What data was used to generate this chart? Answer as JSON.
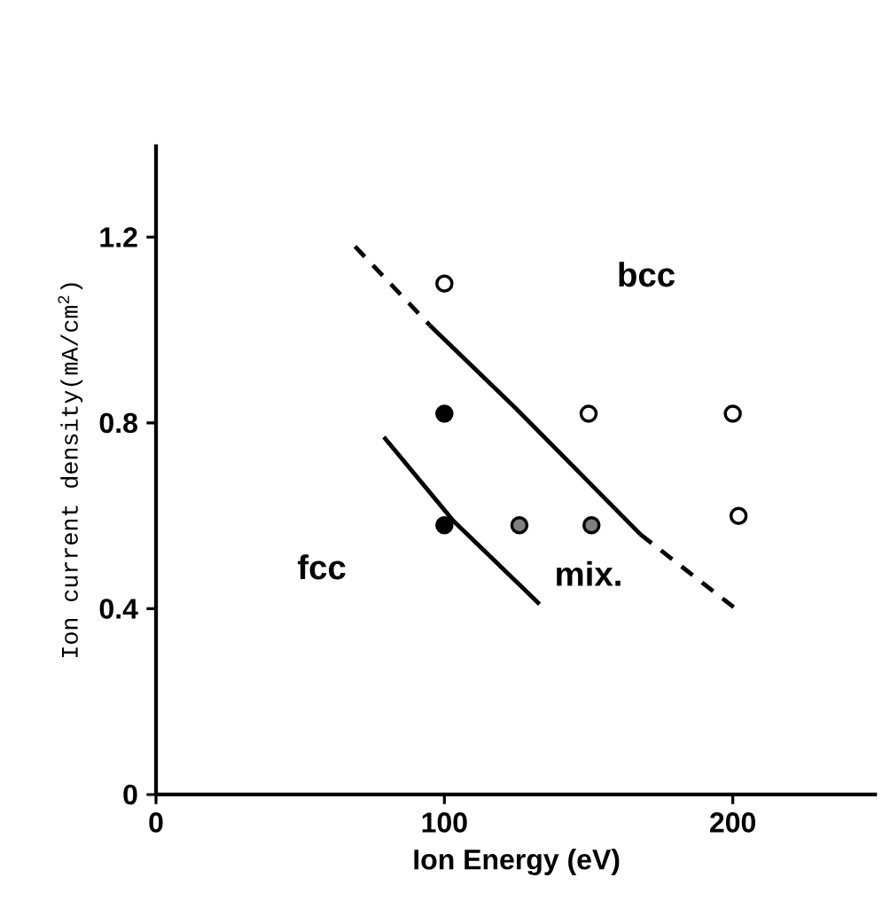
{
  "chart_data": {
    "type": "scatter",
    "xlabel": "Ion Energy (eV)",
    "ylabel": "Ion current density(mA/cm$^{2}$)",
    "xlim": [
      0,
      250
    ],
    "ylim": [
      0,
      1.4
    ],
    "xticks": [
      0,
      100,
      200
    ],
    "yticks": [
      0,
      0.4,
      0.8,
      1.2
    ],
    "series": [
      {
        "type": "scatter",
        "color": "#ffffff",
        "x": [
          100,
          150,
          200,
          202
        ],
        "values": [
          1.1,
          0.82,
          0.82,
          0.6
        ]
      },
      {
        "type": "scatter",
        "color": "#000000",
        "x": [
          100,
          100
        ],
        "values": [
          0.82,
          0.58
        ]
      },
      {
        "type": "scatter",
        "color": "#808080",
        "x": [
          126,
          151
        ],
        "values": [
          0.58,
          0.58
        ]
      },
      {
        "type": "line",
        "color": "#000000",
        "line_style": "dashed",
        "x": [
          69,
          95
        ],
        "values": [
          1.18,
          1.01
        ]
      },
      {
        "type": "line",
        "color": "#000000",
        "line_style": "solid",
        "x": [
          95,
          125,
          168
        ],
        "values": [
          1.01,
          0.83,
          0.56
        ]
      },
      {
        "type": "line",
        "color": "#000000",
        "line_style": "dashed",
        "x": [
          168,
          201
        ],
        "values": [
          0.56,
          0.4
        ]
      },
      {
        "type": "line",
        "color": "#000000",
        "line_style": "solid",
        "x": [
          79,
          103,
          133
        ],
        "values": [
          0.77,
          0.59,
          0.41
        ]
      }
    ],
    "annotations": [
      "bcc",
      "fcc",
      "mix."
    ]
  }
}
